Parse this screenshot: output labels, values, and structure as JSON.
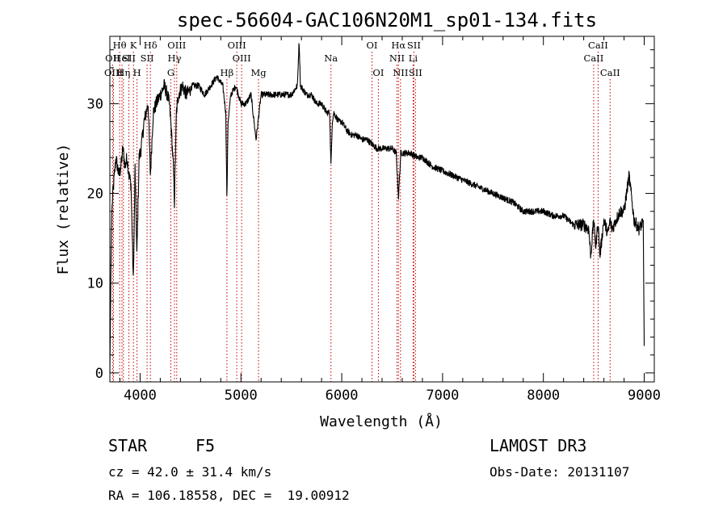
{
  "chart_data": {
    "type": "line",
    "title": "spec-56604-GAC106N20M1_sp01-134.fits",
    "xlabel": "Wavelength (Å)",
    "ylabel": "Flux (relative)",
    "xlim": [
      3700,
      9100
    ],
    "ylim": [
      -1,
      37.5
    ],
    "x_ticks": [
      4000,
      5000,
      6000,
      7000,
      8000,
      9000
    ],
    "y_ticks": [
      0,
      10,
      20,
      30
    ],
    "spectrum_anchor_points": {
      "x": [
        3700,
        3705,
        3712,
        3720,
        3730,
        3745,
        3760,
        3775,
        3790,
        3810,
        3830,
        3850,
        3870,
        3890,
        3910,
        3933,
        3950,
        3968,
        3990,
        4010,
        4040,
        4060,
        4080,
        4102,
        4130,
        4160,
        4200,
        4240,
        4270,
        4290,
        4310,
        4330,
        4340,
        4350,
        4360,
        4380,
        4420,
        4460,
        4520,
        4580,
        4640,
        4700,
        4760,
        4820,
        4850,
        4861,
        4872,
        4900,
        4950,
        5000,
        5050,
        5100,
        5150,
        5200,
        5250,
        5300,
        5400,
        5500,
        5560,
        5577,
        5590,
        5650,
        5700,
        5750,
        5800,
        5850,
        5880,
        5893,
        5906,
        5920,
        5970,
        6000,
        6050,
        6100,
        6150,
        6200,
        6250,
        6300,
        6350,
        6400,
        6450,
        6500,
        6540,
        6563,
        6585,
        6620,
        6680,
        6750,
        6800,
        6900,
        7000,
        7100,
        7200,
        7300,
        7400,
        7500,
        7600,
        7700,
        7800,
        7900,
        8000,
        8100,
        8200,
        8300,
        8400,
        8450,
        8470,
        8498,
        8520,
        8542,
        8560,
        8600,
        8640,
        8662,
        8680,
        8720,
        8760,
        8800,
        8850,
        8900,
        8950,
        8990,
        9000
      ],
      "flux": [
        0,
        5,
        13,
        18,
        20,
        22,
        24,
        23,
        22,
        23,
        25,
        23,
        24,
        22,
        21,
        10,
        23,
        13,
        24,
        25,
        28,
        29,
        30,
        22,
        29,
        30,
        31,
        32,
        31,
        30,
        27,
        23,
        19,
        24,
        29,
        31,
        32,
        31,
        32,
        32,
        31,
        32,
        33,
        32,
        29,
        19,
        28,
        31,
        32,
        30,
        30,
        31,
        26,
        31,
        31,
        31,
        31,
        31,
        32,
        37,
        32,
        31,
        31,
        30,
        30,
        29,
        29,
        23,
        28,
        29,
        28,
        28,
        27,
        26.5,
        26.5,
        26,
        26,
        25.5,
        25,
        25,
        25,
        25,
        24.5,
        19.5,
        24.5,
        24.5,
        24.5,
        24,
        24,
        23,
        22.5,
        22,
        21.5,
        21,
        20.5,
        20,
        19.5,
        19,
        18,
        18,
        18,
        17.5,
        17.5,
        16.5,
        16.5,
        16,
        13,
        17,
        14,
        17,
        13,
        17,
        15.5,
        17,
        16,
        17,
        18,
        18,
        22,
        17,
        16,
        17,
        3
      ]
    },
    "line_markers": [
      {
        "label": "Hθ",
        "wave": 3797,
        "row": 1
      },
      {
        "label": "OII",
        "wave": 3727,
        "row": 2
      },
      {
        "label": "OIII",
        "wave": 3736,
        "row": 3
      },
      {
        "label": "HeI",
        "wave": 3820,
        "row": 2
      },
      {
        "label": "Hη",
        "wave": 3835,
        "row": 3
      },
      {
        "label": "K",
        "wave": 3934,
        "row": 1
      },
      {
        "label": "SII",
        "wave": 3889,
        "row": 2
      },
      {
        "label": "H",
        "wave": 3969,
        "row": 3
      },
      {
        "label": "Hδ",
        "wave": 4102,
        "row": 1
      },
      {
        "label": "SII",
        "wave": 4069,
        "row": 2
      },
      {
        "label": "OIII",
        "wave": 4363,
        "row": 1
      },
      {
        "label": "Hγ",
        "wave": 4341,
        "row": 2
      },
      {
        "label": "G",
        "wave": 4305,
        "row": 3
      },
      {
        "label": "Hβ",
        "wave": 4861,
        "row": 3
      },
      {
        "label": "OIII",
        "wave": 4959,
        "row": 1
      },
      {
        "label": "OIII",
        "wave": 5007,
        "row": 2
      },
      {
        "label": "Mg",
        "wave": 5175,
        "row": 3
      },
      {
        "label": "Na",
        "wave": 5893,
        "row": 2
      },
      {
        "label": "OI",
        "wave": 6300,
        "row": 1
      },
      {
        "label": "OI",
        "wave": 6363,
        "row": 3
      },
      {
        "label": "Hα",
        "wave": 6563,
        "row": 1
      },
      {
        "label": "NII",
        "wave": 6548,
        "row": 2
      },
      {
        "label": "NII",
        "wave": 6583,
        "row": 3
      },
      {
        "label": "SII",
        "wave": 6716,
        "row": 1
      },
      {
        "label": "Li",
        "wave": 6708,
        "row": 2
      },
      {
        "label": "SII",
        "wave": 6731,
        "row": 3
      },
      {
        "label": "CaII",
        "wave": 8542,
        "row": 1
      },
      {
        "label": "CaII",
        "wave": 8498,
        "row": 2
      },
      {
        "label": "CaII",
        "wave": 8662,
        "row": 3
      }
    ]
  },
  "info": {
    "object_class": "STAR",
    "subclass": "F5",
    "redshift": "cz = 42.0 ± 31.4 km/s",
    "coords": "RA = 106.18558, DEC =  19.00912",
    "survey": "LAMOST DR3",
    "obs_date": "Obs-Date: 20131107"
  },
  "colors": {
    "spectrum": "#000000",
    "marker_line": "#c00000",
    "axes": "#000000"
  }
}
